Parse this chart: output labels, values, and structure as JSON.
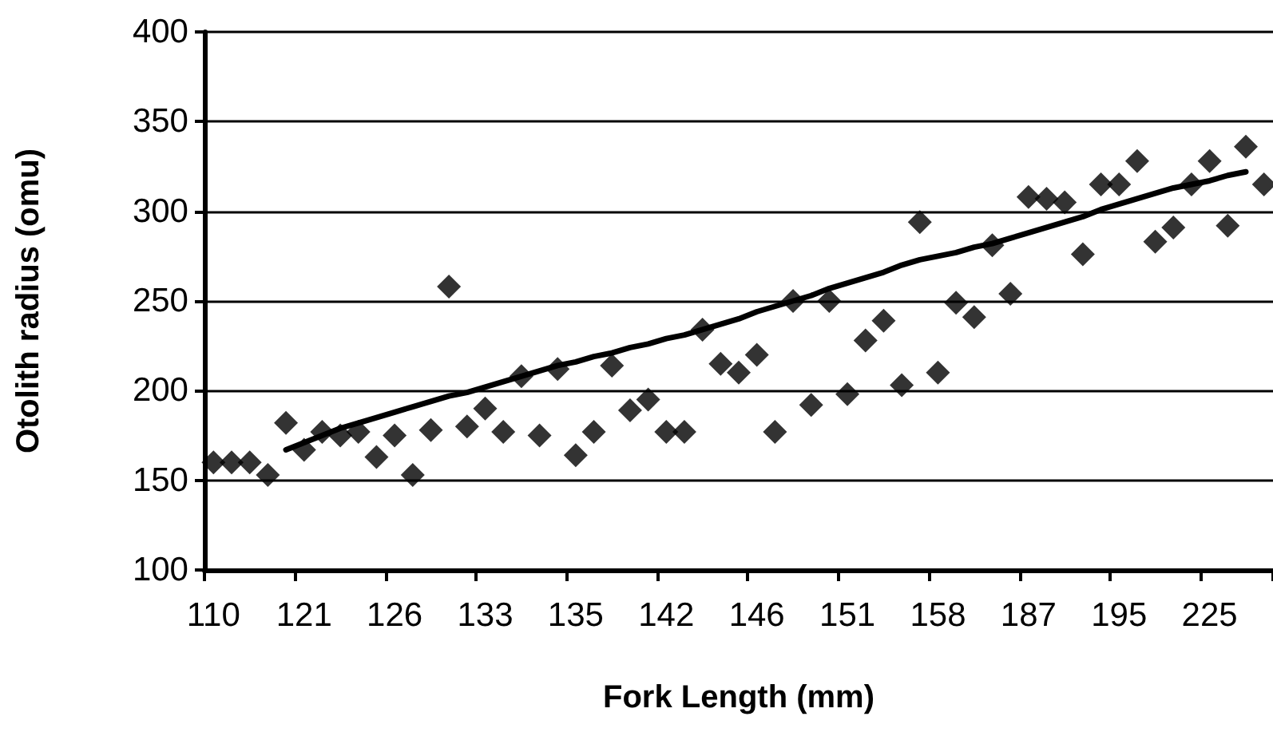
{
  "chart_data": {
    "type": "scatter",
    "xlabel": "Fork Length (mm)",
    "ylabel": "Otolith radius (omu)",
    "categories": [
      "110",
      null,
      null,
      null,
      null,
      "121",
      null,
      null,
      null,
      null,
      "126",
      null,
      null,
      null,
      null,
      "133",
      null,
      null,
      null,
      null,
      "135",
      null,
      null,
      null,
      null,
      "142",
      null,
      null,
      null,
      null,
      "146",
      null,
      null,
      null,
      null,
      "151",
      null,
      null,
      null,
      null,
      "158",
      null,
      null,
      null,
      null,
      "187",
      null,
      null,
      null,
      null,
      "195",
      null,
      null,
      null,
      null,
      "225",
      null,
      null,
      null
    ],
    "series": [
      {
        "color": "#000000",
        "marker": "diamond",
        "values": [
          160,
          160,
          160,
          153,
          182,
          167,
          177,
          175,
          177,
          163,
          175,
          153,
          178,
          258,
          180,
          190,
          177,
          208,
          175,
          212,
          164,
          177,
          214,
          189,
          195,
          177,
          177,
          234,
          215,
          210,
          220,
          177,
          250,
          192,
          250,
          198,
          228,
          239,
          203,
          294,
          210,
          249,
          241,
          281,
          254,
          308,
          307,
          305,
          276,
          315,
          315,
          328,
          283,
          291,
          315,
          328,
          292,
          336,
          315
        ]
      },
      {
        "type": "line",
        "color": "#000000",
        "marker": "none",
        "line_style": "solid",
        "values": [
          null,
          null,
          null,
          null,
          167,
          171,
          175,
          179,
          182,
          185,
          188,
          191,
          194,
          197,
          199,
          202,
          205,
          208,
          211,
          214,
          216,
          219,
          221,
          224,
          226,
          229,
          231,
          234,
          237,
          240,
          244,
          247,
          250,
          253,
          257,
          260,
          263,
          266,
          270,
          273,
          275,
          277,
          280,
          282,
          285,
          288,
          291,
          294,
          297,
          301,
          304,
          307,
          310,
          313,
          315,
          317,
          320,
          322,
          null
        ]
      }
    ],
    "ylim": [
      100,
      400
    ],
    "yticks": [
      100,
      150,
      200,
      250,
      300,
      350,
      400
    ],
    "grid": "y"
  }
}
